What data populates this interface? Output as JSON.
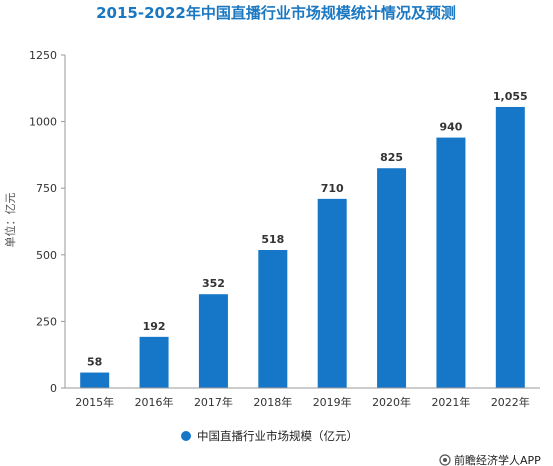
{
  "chart_data": {
    "type": "bar",
    "title": "2015-2022年中国直播行业市场规模统计情况及预测",
    "categories": [
      "2015年",
      "2016年",
      "2017年",
      "2018年",
      "2019年",
      "2020年",
      "2021年",
      "2022年"
    ],
    "series": [
      {
        "name": "中国直播行业市场规模（亿元）",
        "values": [
          58,
          192,
          352,
          518,
          710,
          825,
          940,
          1055
        ],
        "data_labels": [
          "58",
          "192",
          "352",
          "518",
          "710",
          "825",
          "940",
          "1,055"
        ]
      }
    ],
    "xlabel": "",
    "ylabel": "单位：亿元",
    "ylim": [
      0,
      1250
    ],
    "yticks": [
      0,
      250,
      500,
      750,
      1000,
      1250
    ],
    "grid": false,
    "legend_position": "bottom-center",
    "bar_color": "#1677c9"
  },
  "source": "前瞻经济学人APP"
}
